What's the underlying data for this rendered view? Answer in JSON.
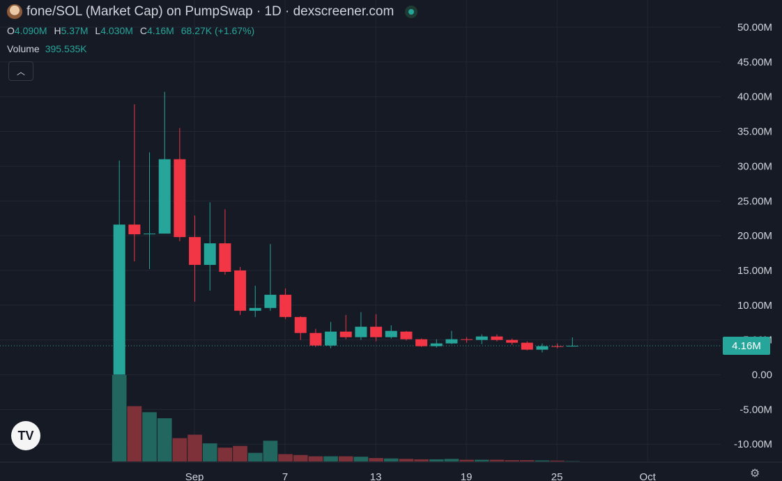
{
  "header": {
    "title": "fone/SOL (Market Cap) on PumpSwap · 1D · dexscreener.com",
    "ohlc": {
      "o_label": "O",
      "o": "4.090M",
      "h_label": "H",
      "h": "5.37M",
      "l_label": "L",
      "l": "4.030M",
      "c_label": "C",
      "c": "4.16M",
      "change": "68.27K (+1.67%)"
    },
    "volume_label": "Volume",
    "volume_value": "395.535K",
    "collapse_icon": "chevron-up-icon"
  },
  "price_tag": "4.16M",
  "colors": {
    "background": "#161a25",
    "up": "#26a69a",
    "down": "#f23645",
    "up_volume": "#22675f",
    "down_volume": "#7f3139",
    "grid": "#232733",
    "text": "#d1d4dc"
  },
  "chart_data": {
    "type": "candlestick",
    "y_ticks": [
      "50.00M",
      "45.00M",
      "40.00M",
      "35.00M",
      "30.00M",
      "25.00M",
      "20.00M",
      "15.00M",
      "10.00M",
      "5.00M",
      "0.00",
      "-5.00M",
      "-10.00M"
    ],
    "x_ticks": [
      {
        "label": "Sep",
        "index": 5
      },
      {
        "label": "7",
        "index": 11
      },
      {
        "label": "13",
        "index": 17
      },
      {
        "label": "19",
        "index": 23
      },
      {
        "label": "25",
        "index": 29
      },
      {
        "label": "Oct",
        "index": 35
      }
    ],
    "ylim": [
      -12.5,
      52.5
    ],
    "last_price": 4.16,
    "candles": [
      {
        "o": 0.0,
        "h": 30.8,
        "l": 0.0,
        "c": 21.6,
        "v": 10.0
      },
      {
        "o": 21.6,
        "h": 38.9,
        "l": 16.3,
        "c": 20.2,
        "v": 6.4
      },
      {
        "o": 20.2,
        "h": 32.0,
        "l": 15.2,
        "c": 20.3,
        "v": 5.7
      },
      {
        "o": 20.3,
        "h": 40.7,
        "l": 20.3,
        "c": 31.0,
        "v": 5.0
      },
      {
        "o": 31.0,
        "h": 35.5,
        "l": 19.2,
        "c": 19.8,
        "v": 2.7
      },
      {
        "o": 19.8,
        "h": 22.9,
        "l": 10.5,
        "c": 15.8,
        "v": 3.1
      },
      {
        "o": 15.8,
        "h": 24.8,
        "l": 12.1,
        "c": 18.9,
        "v": 2.1
      },
      {
        "o": 18.9,
        "h": 23.8,
        "l": 14.4,
        "c": 14.8,
        "v": 1.6
      },
      {
        "o": 15.0,
        "h": 15.5,
        "l": 8.6,
        "c": 9.2,
        "v": 1.8
      },
      {
        "o": 9.2,
        "h": 12.8,
        "l": 8.3,
        "c": 9.6,
        "v": 1.0
      },
      {
        "o": 9.6,
        "h": 18.8,
        "l": 9.2,
        "c": 11.5,
        "v": 2.4
      },
      {
        "o": 11.5,
        "h": 12.4,
        "l": 8.0,
        "c": 8.3,
        "v": 0.85
      },
      {
        "o": 8.3,
        "h": 8.4,
        "l": 5.0,
        "c": 6.0,
        "v": 0.75
      },
      {
        "o": 6.0,
        "h": 6.6,
        "l": 4.0,
        "c": 4.2,
        "v": 0.6
      },
      {
        "o": 4.2,
        "h": 7.6,
        "l": 3.8,
        "c": 6.2,
        "v": 0.6
      },
      {
        "o": 6.2,
        "h": 8.6,
        "l": 5.1,
        "c": 5.4,
        "v": 0.6
      },
      {
        "o": 5.4,
        "h": 9.0,
        "l": 5.0,
        "c": 6.9,
        "v": 0.55
      },
      {
        "o": 6.9,
        "h": 8.7,
        "l": 4.8,
        "c": 5.4,
        "v": 0.4
      },
      {
        "o": 5.4,
        "h": 7.1,
        "l": 5.2,
        "c": 6.3,
        "v": 0.35
      },
      {
        "o": 6.2,
        "h": 6.3,
        "l": 4.9,
        "c": 5.1,
        "v": 0.3
      },
      {
        "o": 5.1,
        "h": 5.2,
        "l": 4.0,
        "c": 4.1,
        "v": 0.25
      },
      {
        "o": 4.1,
        "h": 5.1,
        "l": 3.9,
        "c": 4.5,
        "v": 0.25
      },
      {
        "o": 4.5,
        "h": 6.3,
        "l": 4.4,
        "c": 5.1,
        "v": 0.3
      },
      {
        "o": 5.1,
        "h": 5.4,
        "l": 4.6,
        "c": 5.0,
        "v": 0.2
      },
      {
        "o": 5.0,
        "h": 5.8,
        "l": 4.4,
        "c": 5.5,
        "v": 0.2
      },
      {
        "o": 5.5,
        "h": 5.8,
        "l": 4.8,
        "c": 5.0,
        "v": 0.2
      },
      {
        "o": 5.0,
        "h": 5.2,
        "l": 4.3,
        "c": 4.6,
        "v": 0.15
      },
      {
        "o": 4.6,
        "h": 4.8,
        "l": 3.5,
        "c": 3.6,
        "v": 0.15
      },
      {
        "o": 3.6,
        "h": 4.5,
        "l": 3.2,
        "c": 4.1,
        "v": 0.12
      },
      {
        "o": 4.1,
        "h": 4.5,
        "l": 3.8,
        "c": 4.0,
        "v": 0.1
      },
      {
        "o": 4.09,
        "h": 5.37,
        "l": 4.03,
        "c": 4.16,
        "v": 0.04
      }
    ],
    "volume_ylim": [
      0,
      10.0
    ]
  }
}
